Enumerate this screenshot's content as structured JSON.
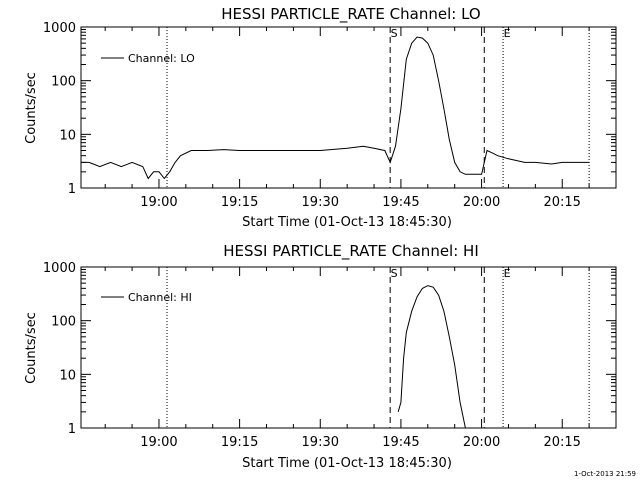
{
  "chart_data": [
    {
      "type": "line",
      "title": "HESSI PARTICLE_RATE Channel: LO",
      "xlabel": "Start Time (01-Oct-13 18:45:30)",
      "ylabel": "Counts/sec",
      "yscale": "log",
      "ylim": [
        1,
        1000
      ],
      "xlim": [
        "18:45:30",
        "20:25:00"
      ],
      "x_ticks": [
        "19:00",
        "19:15",
        "19:30",
        "19:45",
        "20:00",
        "20:15"
      ],
      "y_ticks": [
        "1",
        "10",
        "100",
        "1000"
      ],
      "legend": {
        "placement": "top-left",
        "entries": [
          "Channel: LO"
        ]
      },
      "series": [
        {
          "name": "Channel: LO",
          "x": [
            "18:45:30",
            "18:47",
            "18:49",
            "18:51",
            "18:53",
            "18:55",
            "18:57",
            "18:58",
            "18:59",
            "19:00",
            "19:01",
            "19:02",
            "19:03",
            "19:04",
            "19:06",
            "19:09",
            "19:12",
            "19:15",
            "19:20",
            "19:25",
            "19:30",
            "19:35",
            "19:38",
            "19:40",
            "19:42",
            "19:43",
            "19:44",
            "19:45",
            "19:46",
            "19:47",
            "19:48",
            "19:49",
            "19:50",
            "19:51",
            "19:52",
            "19:53",
            "19:54",
            "19:55",
            "19:56",
            "19:57",
            "19:58",
            "19:59",
            "20:00",
            "20:01",
            "20:02",
            "20:03",
            "20:05",
            "20:08",
            "20:10",
            "20:13",
            "20:15",
            "20:17",
            "20:19",
            "20:20"
          ],
          "y": [
            3,
            3,
            2.5,
            3,
            2.5,
            3,
            2.5,
            1.5,
            2,
            2,
            1.5,
            2,
            3,
            4,
            5,
            5,
            5.2,
            5,
            5,
            5,
            5,
            5.5,
            6,
            5.5,
            5,
            3,
            6,
            30,
            250,
            500,
            650,
            620,
            500,
            300,
            100,
            30,
            8,
            3,
            2,
            1.8,
            1.8,
            1.8,
            1.8,
            5,
            4.5,
            4,
            3.5,
            3,
            3,
            2.8,
            3,
            3,
            3,
            3
          ]
        }
      ],
      "markers": [
        {
          "label": "S",
          "x": "19:43:00",
          "style": "dashed"
        },
        {
          "label": "",
          "x": "20:00:30",
          "style": "dashed"
        },
        {
          "label": "",
          "x": "19:01:30",
          "style": "dotted"
        },
        {
          "label": "E",
          "x": "20:04:00",
          "style": "dotted"
        },
        {
          "label": "",
          "x": "20:20:00",
          "style": "dotted"
        }
      ]
    },
    {
      "type": "line",
      "title": "HESSI PARTICLE_RATE Channel: HI",
      "xlabel": "Start Time (01-Oct-13 18:45:30)",
      "ylabel": "Counts/sec",
      "yscale": "log",
      "ylim": [
        1,
        1000
      ],
      "xlim": [
        "18:45:30",
        "20:25:00"
      ],
      "x_ticks": [
        "19:00",
        "19:15",
        "19:30",
        "19:45",
        "20:00",
        "20:15"
      ],
      "y_ticks": [
        "1",
        "10",
        "100",
        "1000"
      ],
      "legend": {
        "placement": "top-left",
        "entries": [
          "Channel: HI"
        ]
      },
      "series": [
        {
          "name": "Channel: HI",
          "x": [
            "19:44:30",
            "19:45",
            "19:45:30",
            "19:46",
            "19:47",
            "19:48",
            "19:49",
            "19:50",
            "19:51",
            "19:52",
            "19:53",
            "19:54",
            "19:55",
            "19:56",
            "19:57"
          ],
          "y": [
            2,
            3,
            20,
            60,
            150,
            280,
            400,
            450,
            420,
            300,
            150,
            50,
            15,
            3,
            1
          ]
        }
      ],
      "markers": [
        {
          "label": "S",
          "x": "19:43:00",
          "style": "dashed"
        },
        {
          "label": "",
          "x": "20:00:30",
          "style": "dashed"
        },
        {
          "label": "",
          "x": "19:01:30",
          "style": "dotted"
        },
        {
          "label": "E",
          "x": "20:04:00",
          "style": "dotted"
        },
        {
          "label": "",
          "x": "20:20:00",
          "style": "dotted"
        }
      ]
    }
  ],
  "timestamp": "1-Oct-2013 21:59"
}
